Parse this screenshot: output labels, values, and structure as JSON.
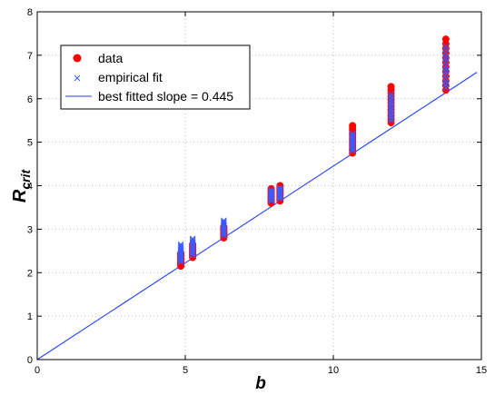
{
  "chart_data": {
    "type": "scatter",
    "xlabel": "b",
    "ylabel_main": "R",
    "ylabel_sub": "crit",
    "xlim": [
      0,
      15
    ],
    "ylim": [
      0,
      8
    ],
    "x_ticks": [
      0,
      5,
      10,
      15
    ],
    "y_ticks": [
      0,
      1,
      2,
      3,
      4,
      5,
      6,
      7,
      8
    ],
    "grid": "dotted",
    "legend_position": "top-left",
    "colors": {
      "data": "#ff0000",
      "fit": "#3b5bff",
      "line": "#1f3fff"
    },
    "clusters": [
      {
        "x": 4.85,
        "data_y": [
          2.15,
          2.45
        ],
        "fit_y": [
          2.25,
          2.65
        ]
      },
      {
        "x": 5.25,
        "data_y": [
          2.35,
          2.65
        ],
        "fit_y": [
          2.4,
          2.78
        ]
      },
      {
        "x": 6.3,
        "data_y": [
          2.8,
          3.05
        ],
        "fit_y": [
          2.85,
          3.2
        ]
      },
      {
        "x": 7.9,
        "data_y": [
          3.6,
          3.93
        ],
        "fit_y": [
          3.65,
          3.9
        ]
      },
      {
        "x": 8.2,
        "data_y": [
          3.65,
          4.0
        ],
        "fit_y": [
          3.7,
          3.95
        ]
      },
      {
        "x": 10.65,
        "data_y": [
          4.75,
          5.38
        ],
        "fit_y": [
          4.8,
          5.2
        ]
      },
      {
        "x": 11.95,
        "data_y": [
          5.45,
          6.28
        ],
        "fit_y": [
          5.5,
          6.1
        ]
      },
      {
        "x": 13.8,
        "data_y": [
          6.2,
          7.37
        ],
        "fit_y": [
          6.25,
          7.2
        ]
      }
    ],
    "fit_line": {
      "slope": 0.445,
      "x": [
        0,
        14.85
      ]
    },
    "series": [
      {
        "name": "data"
      },
      {
        "name": "empirical fit"
      },
      {
        "name": "best fitted slope = 0.445"
      }
    ]
  }
}
